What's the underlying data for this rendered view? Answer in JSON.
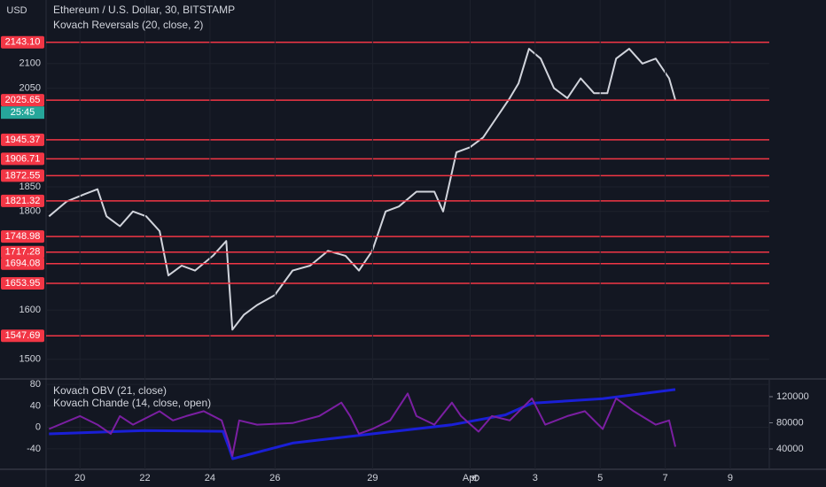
{
  "header": {
    "title": "Ethereum / U.S. Dollar, 30, BITSTAMP",
    "indicator": "Kovach Reversals (20, close, 2)",
    "currency": "USD",
    "countdown": "25:45"
  },
  "chart_data": [
    {
      "type": "line",
      "xlim": [
        -1.04,
        21.2
      ],
      "ylim": [
        1460,
        2229
      ],
      "yticks": [
        1500,
        1600,
        1800,
        1850,
        2050,
        2100
      ],
      "grid": true,
      "series": [
        {
          "color": "#d1d4dc",
          "x": [
            -0.95,
            -0.41,
            0.14,
            0.54,
            0.82,
            1.23,
            1.63,
            2.04,
            2.45,
            2.72,
            3.13,
            3.54,
            4.09,
            4.5,
            4.69,
            5.04,
            5.45,
            5.99,
            6.54,
            7.08,
            7.63,
            8.17,
            8.58,
            8.99,
            9.4,
            9.81,
            10.35,
            10.9,
            11.17,
            11.58,
            11.99,
            12.4,
            12.81,
            13.22,
            13.49,
            13.81,
            14.17,
            14.58,
            14.99,
            15.4,
            15.81,
            16.22,
            16.49,
            16.89,
            17.3,
            17.71,
            18.12,
            18.31
          ],
          "values": [
            1790,
            1820,
            1835,
            1845,
            1790,
            1770,
            1800,
            1790,
            1760,
            1670,
            1690,
            1680,
            1710,
            1740,
            1560,
            1590,
            1610,
            1630,
            1680,
            1690,
            1720,
            1710,
            1680,
            1720,
            1800,
            1810,
            1840,
            1840,
            1800,
            1920,
            1930,
            1950,
            1990,
            2030,
            2060,
            2130,
            2110,
            2050,
            2030,
            2070,
            2040,
            2040,
            2110,
            2130,
            2100,
            2110,
            2070,
            2026
          ]
        }
      ],
      "levels": {
        "color": "#f23645",
        "values": [
          {
            "value": 2143.1,
            "label": "2143.10"
          },
          {
            "value": 2025.65,
            "label": "2025.65"
          },
          {
            "value": 1945.37,
            "label": "1945.37"
          },
          {
            "value": 1906.71,
            "label": "1906.71"
          },
          {
            "value": 1872.55,
            "label": "1872.55"
          },
          {
            "value": 1821.32,
            "label": "1821.32"
          },
          {
            "value": 1748.98,
            "label": "1748.98"
          },
          {
            "value": 1717.28,
            "label": "1717.28"
          },
          {
            "value": 1694.08,
            "label": "1694.08"
          },
          {
            "value": 1653.95,
            "label": "1653.95"
          },
          {
            "value": 1547.69,
            "label": "1547.69"
          }
        ]
      }
    },
    {
      "type": "line",
      "xlim": [
        -1.04,
        21.2
      ],
      "ylim": [
        -78,
        90
      ],
      "y2lim": [
        8800,
        147100
      ],
      "yticks": [
        -40,
        0,
        40,
        80
      ],
      "y2ticks": [
        40000,
        80000,
        120000
      ],
      "xticks": [
        {
          "value": 0,
          "label": "20"
        },
        {
          "value": 2,
          "label": "22"
        },
        {
          "value": 4,
          "label": "24"
        },
        {
          "value": 6,
          "label": "26"
        },
        {
          "value": 9,
          "label": "29"
        },
        {
          "value": 12,
          "label": "Apr"
        },
        {
          "value": 14,
          "label": "3"
        },
        {
          "value": 16,
          "label": "5"
        },
        {
          "value": 18,
          "label": "7"
        },
        {
          "value": 20,
          "label": "9"
        }
      ],
      "series": [
        {
          "name": "Kovach OBV (21, close)",
          "color": "#1a1fd6",
          "axis": "y2",
          "x": [
            -0.95,
            2.0,
            4.4,
            4.6,
            4.7,
            6.54,
            8.99,
            11.44,
            13.08,
            13.9,
            16.08,
            18.31
          ],
          "values": [
            63000,
            68000,
            67000,
            40000,
            25000,
            49000,
            63000,
            77000,
            92000,
            110000,
            117000,
            131000
          ]
        },
        {
          "name": "Kovach Chande (14, close, open)",
          "color": "#7b1fa2",
          "x": [
            -0.95,
            0,
            0.54,
            0.95,
            1.23,
            1.63,
            2.45,
            2.86,
            3.27,
            3.81,
            4.36,
            4.58,
            4.69,
            4.9,
            5.45,
            6.54,
            7.36,
            8.04,
            8.31,
            8.58,
            8.99,
            9.54,
            10.08,
            10.35,
            10.9,
            11.44,
            11.72,
            12.26,
            12.67,
            13.22,
            13.9,
            14.31,
            14.99,
            15.53,
            16.08,
            16.49,
            17.03,
            17.71,
            18.12,
            18.31
          ],
          "values": [
            -3,
            21,
            5,
            -12,
            21,
            5,
            30,
            13,
            21,
            30,
            13,
            -28,
            -53,
            13,
            5,
            8,
            21,
            46,
            21,
            -12,
            -3,
            13,
            63,
            21,
            5,
            46,
            21,
            -8,
            21,
            13,
            54,
            5,
            21,
            30,
            -3,
            54,
            30,
            5,
            13,
            -36
          ]
        }
      ]
    }
  ]
}
